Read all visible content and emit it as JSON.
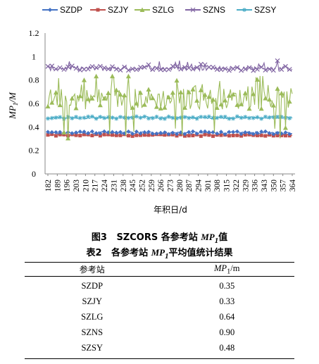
{
  "chart_data": {
    "type": "line",
    "ylabel": "MP1/M",
    "xlabel": "年积日/d",
    "ylim": [
      0,
      1.2
    ],
    "yticks": [
      "0",
      "0.2",
      "0.4",
      "0.6",
      "0.8",
      "1",
      "1.2"
    ],
    "xticks": [
      "182",
      "189",
      "196",
      "203",
      "210",
      "217",
      "224",
      "231",
      "238",
      "245",
      "252",
      "259",
      "266",
      "273",
      "280",
      "287",
      "294",
      "301",
      "308",
      "315",
      "322",
      "329",
      "336",
      "343",
      "350",
      "357",
      "364"
    ],
    "xrange": [
      182,
      364
    ],
    "legend_position": "top",
    "series": [
      {
        "name": "SZDP",
        "color": "#4472c4",
        "marker": "diamond",
        "mean": 0.35
      },
      {
        "name": "SZJY",
        "color": "#c0504d",
        "marker": "square",
        "mean": 0.33
      },
      {
        "name": "SZLG",
        "color": "#9bbb59",
        "marker": "triangle",
        "mean": 0.64
      },
      {
        "name": "SZNS",
        "color": "#8064a2",
        "marker": "x",
        "mean": 0.9
      },
      {
        "name": "SZSY",
        "color": "#4bacc6",
        "marker": "star",
        "mean": 0.48
      }
    ]
  },
  "figure_caption": {
    "label": "图3",
    "text_prefix": "SZCORS 各参考站 ",
    "symbol": "MP",
    "subscript": "1",
    "text_suffix": "值"
  },
  "table_caption": {
    "label": "表2",
    "text_prefix": "各参考站 ",
    "symbol": "MP",
    "subscript": "1",
    "text_suffix": "平均值统计结果"
  },
  "table": {
    "header_station": "参考站",
    "header_value_symbol": "MP",
    "header_value_subscript": "1",
    "header_value_unit": "/m",
    "rows": [
      {
        "station": "SZDP",
        "value": "0.35"
      },
      {
        "station": "SZJY",
        "value": "0.33"
      },
      {
        "station": "SZLG",
        "value": "0.64"
      },
      {
        "station": "SZNS",
        "value": "0.90"
      },
      {
        "station": "SZSY",
        "value": "0.48"
      }
    ]
  }
}
